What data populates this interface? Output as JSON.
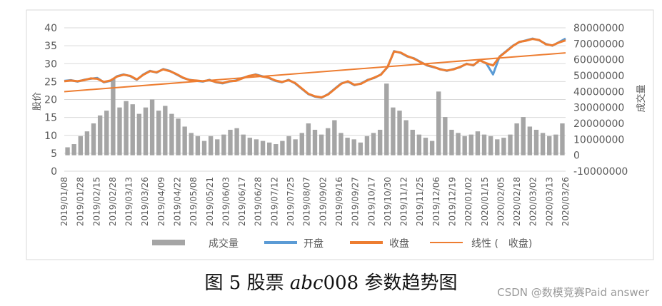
{
  "caption": {
    "prefix": "图 5 股票 ",
    "stock_code_italic": "abc",
    "stock_code_number": "008",
    "suffix": " 参数趋势图"
  },
  "watermark": "CSDN @数模竞赛Paid answer",
  "colors": {
    "volume": "#a5a5a5",
    "open": "#5b9bd5",
    "close": "#ed7d31",
    "trend": "#ed7d31",
    "grid": "#d9d9d9",
    "axis_text": "#595959"
  },
  "chart_data": {
    "type": "line",
    "title": "",
    "xlabel": "",
    "ylabel_left": "股价",
    "ylabel_right": "成交量",
    "ylim_left": [
      0,
      40
    ],
    "ylim_right": [
      -10000000,
      80000000
    ],
    "left_ticks": [
      "0",
      "5",
      "10",
      "15",
      "20",
      "25",
      "30",
      "35",
      "40"
    ],
    "right_ticks": [
      "-10000000",
      "0",
      "10000000",
      "20000000",
      "30000000",
      "40000000",
      "50000000",
      "60000000",
      "70000000",
      "80000000"
    ],
    "x_tick_labels": [
      "2019/01/08",
      "2019/01/28",
      "2019/02/15",
      "2019/02/28",
      "2019/03/13",
      "2019/03/26",
      "2019/04/09",
      "2019/04/22",
      "2019/05/08",
      "2019/05/21",
      "2019/06/03",
      "2019/06/17",
      "2019/06/28",
      "2019/07/12",
      "2019/07/25",
      "2019/08/07",
      "2019/09/02",
      "2019/09/16",
      "2019/09/27",
      "2019/10/17",
      "2019/10/30",
      "2019/11/12",
      "2019/11/25",
      "2019/12/06",
      "2019/12/19",
      "2020/01/02",
      "2020/01/15",
      "2020/02/05",
      "2020/02/18",
      "2020/03/02",
      "2020/03/13",
      "2020/03/26"
    ],
    "grid": true,
    "legend_position": "bottom",
    "legend": [
      "成交量",
      "开盘",
      "收盘",
      "线性 (　收盘)"
    ],
    "series": [
      {
        "name": "开盘",
        "type": "line",
        "axis": "left",
        "values": [
          25.2,
          25.4,
          25.0,
          25.5,
          25.8,
          26.0,
          24.8,
          25.2,
          26.5,
          27.0,
          26.5,
          25.5,
          27.0,
          28.0,
          27.5,
          28.5,
          28.0,
          27.0,
          26.0,
          25.5,
          25.2,
          25.0,
          25.5,
          24.8,
          24.5,
          25.0,
          25.3,
          26.0,
          26.5,
          27.0,
          26.5,
          26.0,
          25.2,
          24.8,
          25.5,
          24.5,
          23.0,
          21.5,
          20.8,
          20.5,
          21.5,
          23.0,
          24.5,
          25.0,
          24.0,
          24.5,
          25.5,
          26.0,
          27.0,
          29.0,
          33.5,
          33.0,
          32.0,
          31.5,
          30.5,
          29.5,
          29.0,
          28.5,
          28.0,
          28.5,
          29.0,
          30.0,
          29.5,
          31.0,
          30.0,
          27.0,
          32.0,
          33.5,
          35.0,
          36.0,
          36.5,
          37.0,
          36.5,
          35.5,
          35.0,
          36.0,
          37.0
        ]
      },
      {
        "name": "收盘",
        "type": "line",
        "axis": "left",
        "values": [
          25.1,
          25.3,
          25.1,
          25.4,
          25.9,
          25.8,
          24.9,
          25.3,
          26.4,
          26.9,
          26.6,
          25.6,
          26.9,
          27.9,
          27.6,
          28.4,
          27.9,
          27.1,
          26.1,
          25.4,
          25.3,
          25.1,
          25.4,
          24.9,
          24.6,
          25.1,
          25.2,
          25.9,
          26.6,
          26.9,
          26.4,
          26.1,
          25.3,
          24.9,
          25.4,
          24.6,
          23.1,
          21.6,
          20.9,
          20.6,
          21.4,
          22.9,
          24.4,
          25.1,
          24.1,
          24.4,
          25.4,
          26.1,
          26.9,
          29.1,
          33.4,
          33.1,
          32.1,
          31.4,
          30.4,
          29.6,
          29.1,
          28.4,
          28.1,
          28.4,
          29.1,
          29.9,
          29.6,
          30.9,
          30.1,
          29.5,
          31.9,
          33.4,
          34.9,
          36.1,
          36.4,
          36.9,
          36.6,
          35.4,
          35.1,
          35.9,
          36.5
        ]
      },
      {
        "name": "线性 (　收盘)",
        "type": "trendline",
        "axis": "left",
        "values": [
          22.2,
          33.0
        ]
      },
      {
        "name": "成交量",
        "type": "bar",
        "axis": "right",
        "values": [
          5000000,
          7000000,
          12000000,
          15000000,
          20000000,
          25000000,
          28000000,
          48000000,
          30000000,
          34000000,
          32000000,
          26000000,
          30000000,
          35000000,
          28000000,
          31000000,
          26000000,
          23000000,
          18000000,
          14000000,
          12000000,
          9000000,
          12000000,
          10000000,
          13000000,
          16000000,
          17000000,
          13000000,
          11000000,
          10000000,
          9000000,
          8000000,
          7000000,
          9000000,
          12000000,
          10000000,
          14000000,
          20000000,
          16000000,
          13000000,
          17000000,
          22000000,
          14000000,
          11000000,
          10000000,
          8000000,
          12000000,
          14000000,
          16000000,
          45000000,
          30000000,
          28000000,
          22000000,
          16000000,
          13000000,
          11000000,
          9000000,
          40000000,
          24000000,
          16000000,
          14000000,
          12000000,
          13000000,
          15000000,
          13000000,
          12000000,
          10000000,
          11000000,
          13000000,
          20000000,
          24000000,
          18000000,
          16000000,
          14000000,
          12000000,
          13000000,
          20000000
        ]
      }
    ],
    "annotations": []
  }
}
